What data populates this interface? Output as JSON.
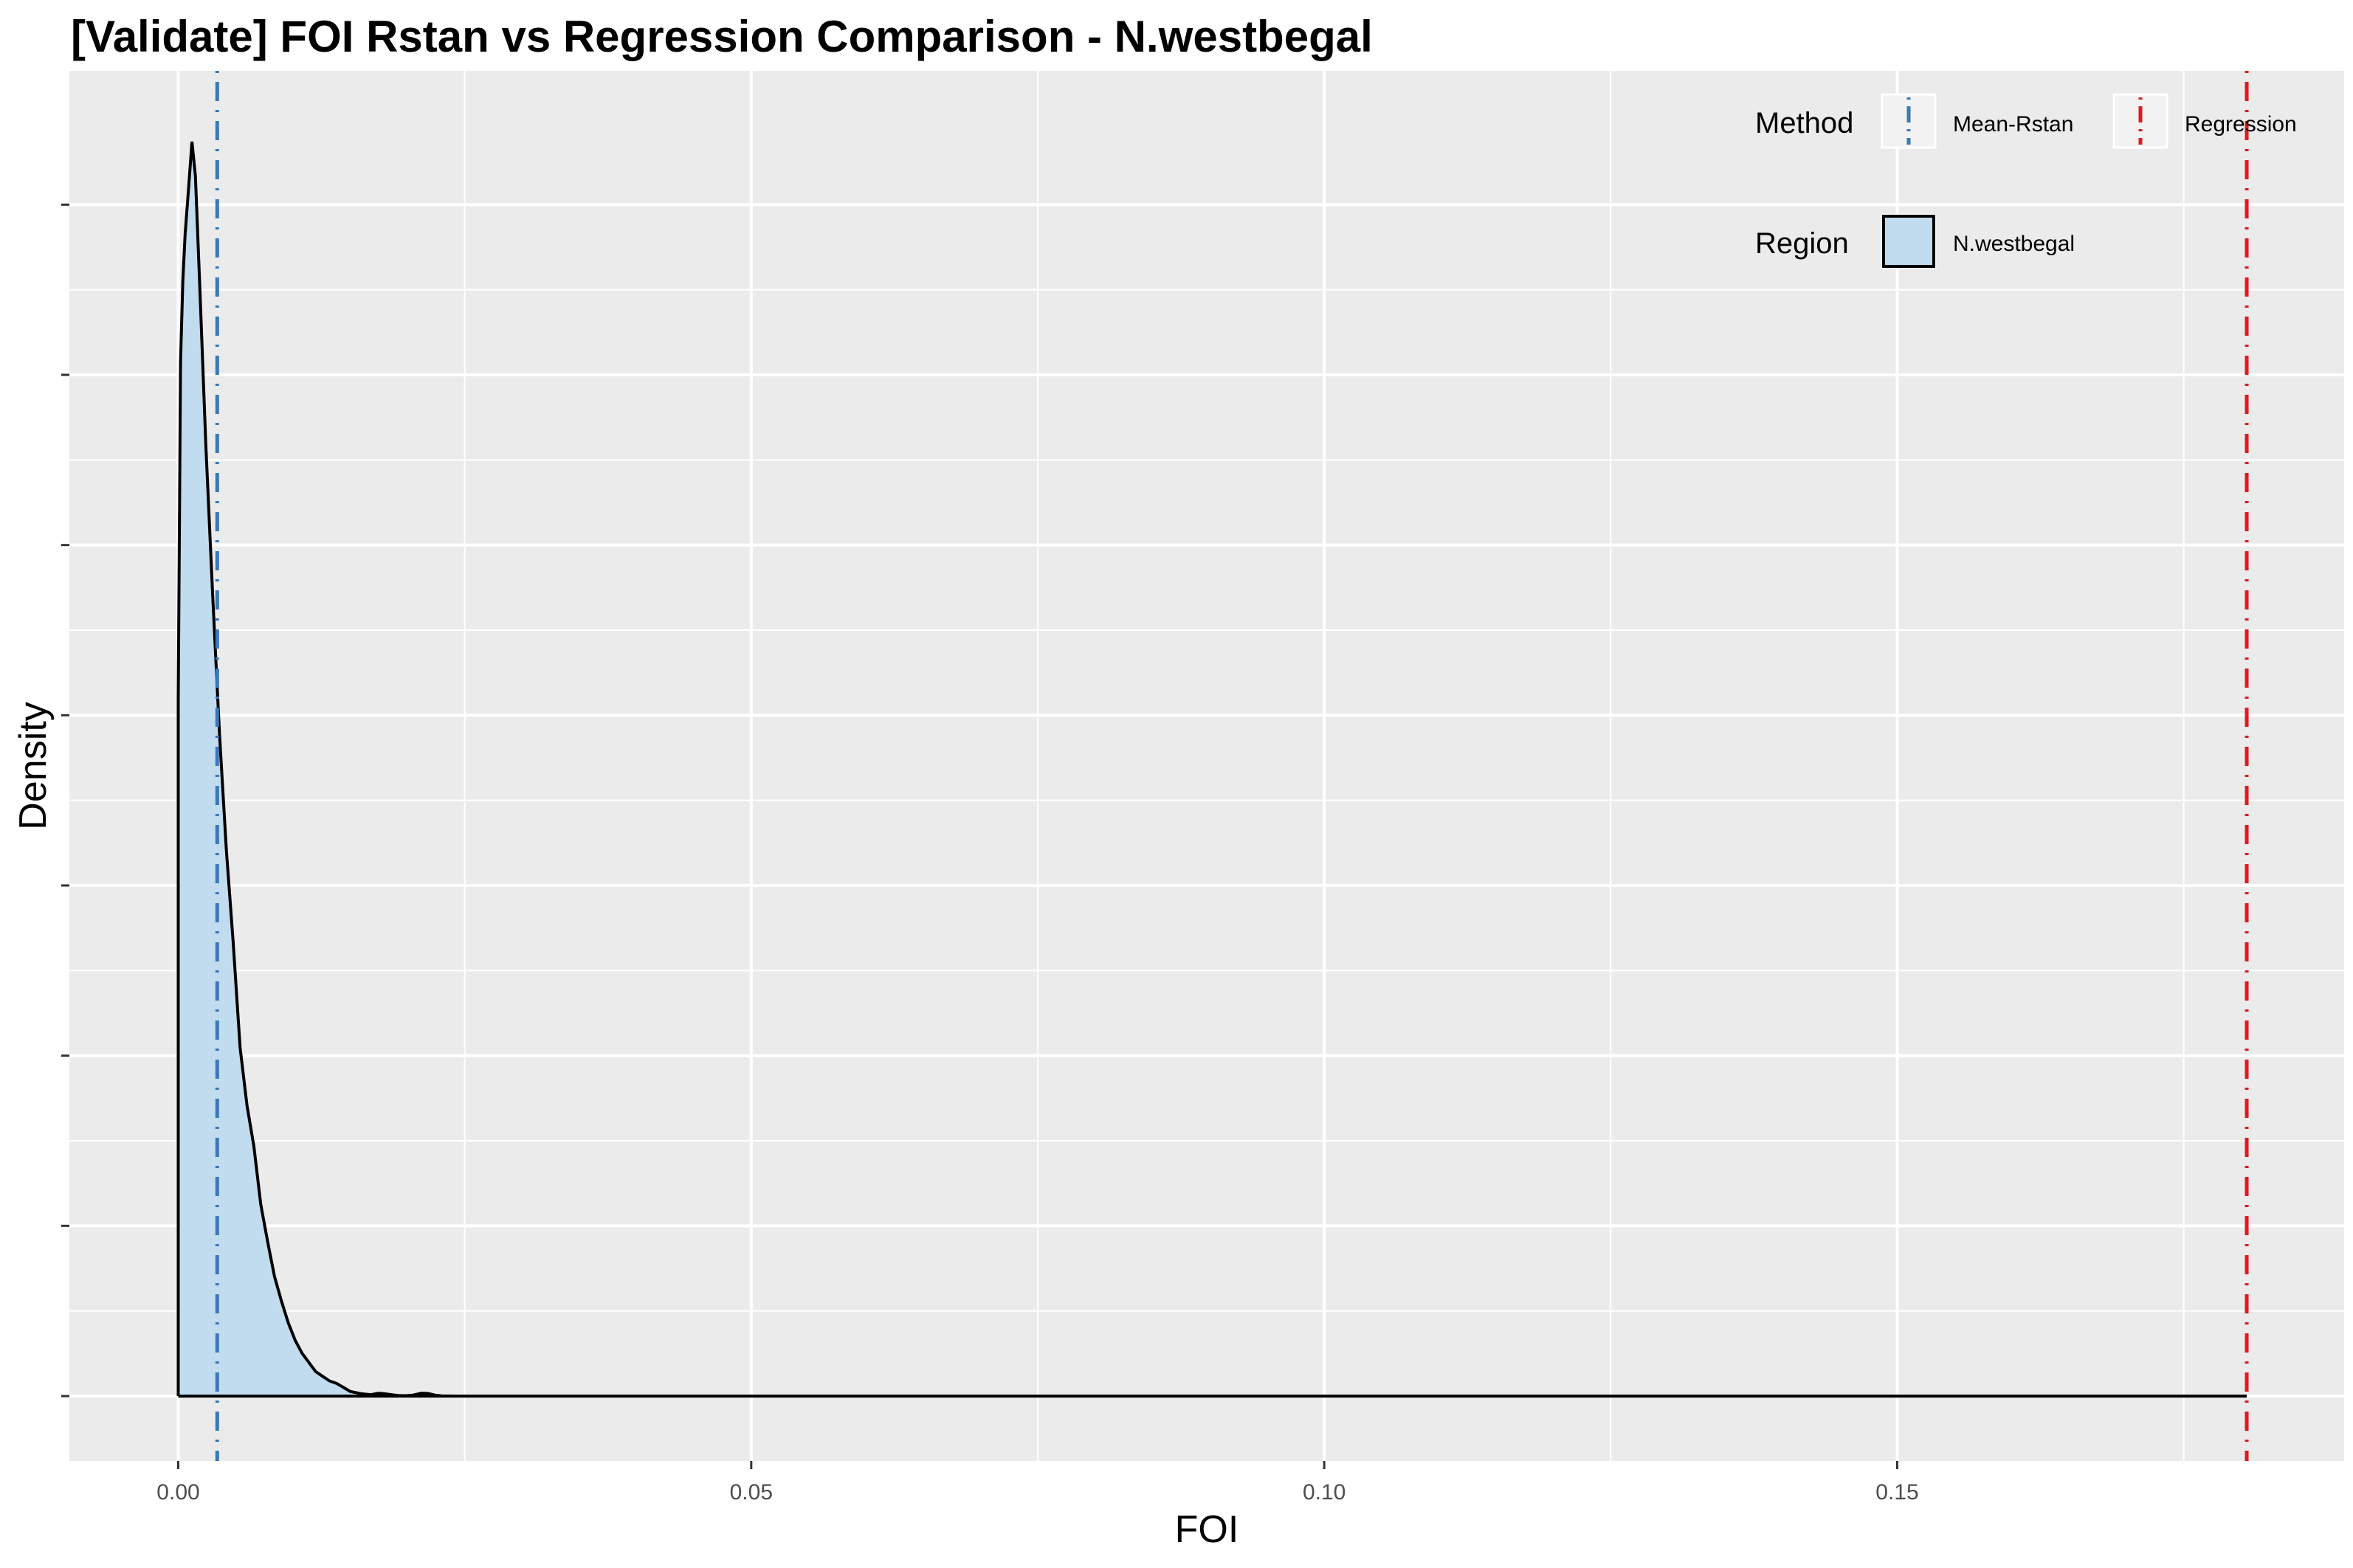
{
  "chart_data": {
    "type": "area",
    "title": "[Validate] FOI Rstan vs Regression Comparison - N.westbegal",
    "xlabel": "FOI",
    "ylabel": "Density",
    "xlim": [
      -0.0095,
      0.189
    ],
    "ylim": [
      0,
      1.08
    ],
    "x_ticks": [
      0.0,
      0.05,
      0.1,
      0.15
    ],
    "x_tick_labels": [
      "0.00",
      "0.05",
      "0.10",
      "0.15"
    ],
    "y_tick_labels_shown": false,
    "grid": true,
    "legend_position": "top-right",
    "density_series": {
      "name": "N.westbegal",
      "fill": "#c0dcee",
      "stroke": "#000000",
      "x": [
        0.0,
        0.0002,
        0.0004,
        0.0006,
        0.0009,
        0.0012,
        0.0015,
        0.0019,
        0.0024,
        0.003,
        0.0036,
        0.0042,
        0.0048,
        0.0054,
        0.006,
        0.0066,
        0.0072,
        0.0078,
        0.0084,
        0.009,
        0.0096,
        0.0102,
        0.0108,
        0.0114,
        0.012,
        0.0126,
        0.0132,
        0.0138,
        0.0145,
        0.015,
        0.0155,
        0.016,
        0.0168,
        0.0175,
        0.018,
        0.0186,
        0.0192,
        0.0198,
        0.0205,
        0.0212,
        0.0218,
        0.0224,
        0.023,
        0.024,
        0.025,
        0.03,
        0.05,
        0.1,
        0.15,
        0.1805
      ],
      "y": [
        0.6,
        0.89,
        0.96,
        1.0,
        1.04,
        1.08,
        1.05,
        0.95,
        0.82,
        0.69,
        0.57,
        0.47,
        0.39,
        0.3,
        0.25,
        0.215,
        0.165,
        0.133,
        0.103,
        0.082,
        0.063,
        0.048,
        0.037,
        0.029,
        0.021,
        0.017,
        0.013,
        0.011,
        0.007,
        0.004,
        0.003,
        0.002,
        0.0012,
        0.0025,
        0.002,
        0.0012,
        0.0005,
        0.0003,
        0.0008,
        0.0025,
        0.0022,
        0.0008,
        0.0002,
        0.0,
        0.0,
        0.0,
        0.0,
        0.0,
        0.0,
        0.0
      ]
    },
    "vlines": [
      {
        "name": "Mean-Rstan",
        "x": 0.0034,
        "color": "#3a78b8",
        "linetype": "dotdash"
      },
      {
        "name": "Regression",
        "x": 0.1805,
        "color": "#e31a1c",
        "linetype": "dotdash"
      }
    ],
    "legend": {
      "method_title": "Method",
      "method_items": [
        {
          "label": "Mean-Rstan",
          "color": "#3a78b8"
        },
        {
          "label": "Regression",
          "color": "#e31a1c"
        }
      ],
      "region_title": "Region",
      "region_items": [
        {
          "label": "N.westbegal",
          "fill": "#c0dcee"
        }
      ]
    }
  }
}
